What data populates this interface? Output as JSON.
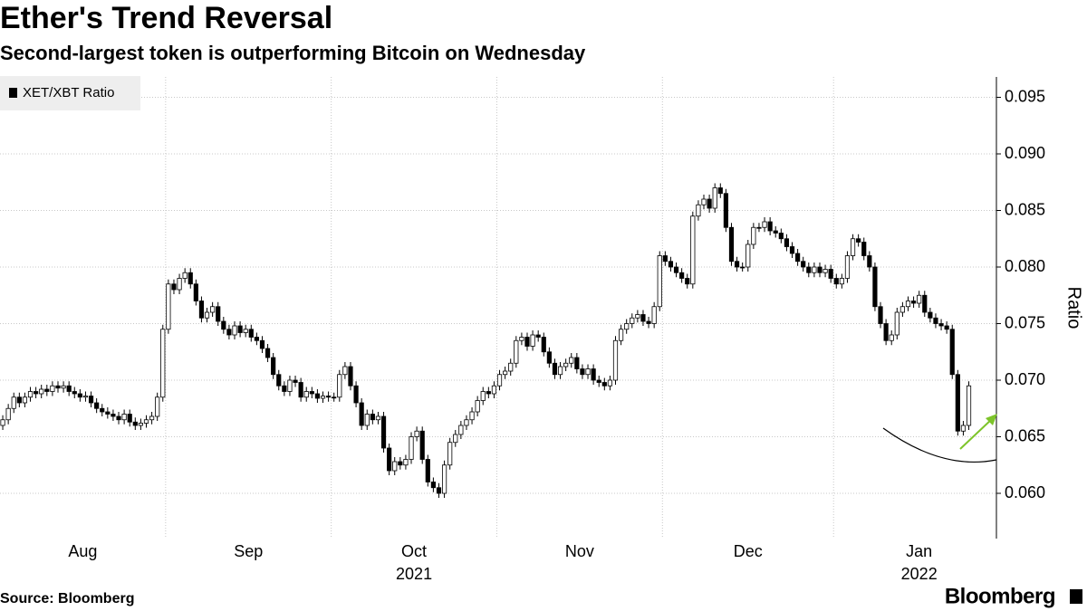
{
  "chart_data": {
    "type": "candlestick",
    "title": "Ether's Trend Reversal",
    "subtitle": "Second-largest token is outperforming Bitcoin on Wednesday",
    "y_label": "Ratio",
    "source": "Source: Bloomberg",
    "brand": "Bloomberg",
    "ylim": [
      0.056,
      0.0968
    ],
    "yticks": [
      {
        "value": 0.06,
        "label": "0.060"
      },
      0.065,
      {
        "value": 0.07,
        "label": "0.070"
      },
      0.075,
      {
        "value": 0.08,
        "label": "0.080"
      },
      0.085,
      {
        "value": 0.09,
        "label": "0.090"
      },
      0.095
    ],
    "xlim": [
      -0.5,
      180
    ],
    "xgrid": [
      29.5,
      59.5,
      89.5,
      119.5,
      150.5
    ],
    "month_labels": [
      {
        "value": 14.5,
        "label": "Aug"
      },
      {
        "value": 44.5,
        "label": "Sep"
      },
      {
        "value": 74.5,
        "label": "Oct",
        "year": "2021"
      },
      {
        "value": 104.5,
        "label": "Nov"
      },
      {
        "value": 135,
        "label": "Dec"
      },
      {
        "value": 166,
        "label": "Jan",
        "year": "2022"
      }
    ],
    "grid": true,
    "legend": "top-left",
    "up_color": "#ffffff",
    "series": [
      {
        "name": "XET/XBT Ratio",
        "color": "#000000",
        "ohlc": [
          [
            0.066,
            0.0669,
            0.0656,
            0.0665
          ],
          [
            0.0665,
            0.0679,
            0.0661,
            0.0675
          ],
          [
            0.0675,
            0.0689,
            0.0671,
            0.0685
          ],
          [
            0.0685,
            0.0689,
            0.0676,
            0.068
          ],
          [
            0.068,
            0.0689,
            0.0676,
            0.0685
          ],
          [
            0.0685,
            0.0694,
            0.0681,
            0.069
          ],
          [
            0.069,
            0.0694,
            0.0684,
            0.0688
          ],
          [
            0.0688,
            0.0696,
            0.0684,
            0.0692
          ],
          [
            0.0692,
            0.0696,
            0.0686,
            0.069
          ],
          [
            0.069,
            0.0699,
            0.0686,
            0.0695
          ],
          [
            0.0695,
            0.0699,
            0.0689,
            0.0693
          ],
          [
            0.0693,
            0.0699,
            0.0689,
            0.0695
          ],
          [
            0.0695,
            0.0699,
            0.0686,
            0.069
          ],
          [
            0.069,
            0.0694,
            0.0684,
            0.0688
          ],
          [
            0.0688,
            0.0692,
            0.0681,
            0.0685
          ],
          [
            0.0685,
            0.069,
            0.0681,
            0.0686
          ],
          [
            0.0686,
            0.069,
            0.0676,
            0.068
          ],
          [
            0.068,
            0.0684,
            0.0671,
            0.0675
          ],
          [
            0.0675,
            0.0679,
            0.0668,
            0.0672
          ],
          [
            0.0672,
            0.0676,
            0.0666,
            0.067
          ],
          [
            0.067,
            0.0674,
            0.0664,
            0.0668
          ],
          [
            0.0668,
            0.0672,
            0.0661,
            0.0665
          ],
          [
            0.0665,
            0.0674,
            0.0661,
            0.067
          ],
          [
            0.067,
            0.0674,
            0.0659,
            0.0663
          ],
          [
            0.0663,
            0.0667,
            0.0656,
            0.066
          ],
          [
            0.066,
            0.0666,
            0.0656,
            0.0662
          ],
          [
            0.0662,
            0.0669,
            0.0658,
            0.0665
          ],
          [
            0.0665,
            0.0672,
            0.0661,
            0.0668
          ],
          [
            0.0668,
            0.0689,
            0.0664,
            0.0685
          ],
          [
            0.0685,
            0.0749,
            0.0681,
            0.0745
          ],
          [
            0.0745,
            0.0789,
            0.0741,
            0.0785
          ],
          [
            0.0785,
            0.0789,
            0.0776,
            0.078
          ],
          [
            0.078,
            0.0794,
            0.0776,
            0.079
          ],
          [
            0.079,
            0.0799,
            0.0786,
            0.0795
          ],
          [
            0.0795,
            0.0799,
            0.0781,
            0.0785
          ],
          [
            0.0785,
            0.0789,
            0.0766,
            0.077
          ],
          [
            0.077,
            0.0774,
            0.0751,
            0.0755
          ],
          [
            0.0755,
            0.0764,
            0.0751,
            0.076
          ],
          [
            0.076,
            0.0769,
            0.0756,
            0.0765
          ],
          [
            0.0765,
            0.0769,
            0.0748,
            0.0752
          ],
          [
            0.0752,
            0.0756,
            0.0741,
            0.0745
          ],
          [
            0.0745,
            0.0749,
            0.0736,
            0.074
          ],
          [
            0.074,
            0.0752,
            0.0736,
            0.0748
          ],
          [
            0.0748,
            0.0752,
            0.0738,
            0.0742
          ],
          [
            0.0742,
            0.0749,
            0.0738,
            0.0745
          ],
          [
            0.0745,
            0.0749,
            0.0734,
            0.0738
          ],
          [
            0.0738,
            0.0742,
            0.0731,
            0.0735
          ],
          [
            0.0735,
            0.0739,
            0.0724,
            0.0728
          ],
          [
            0.0728,
            0.0732,
            0.0716,
            0.072
          ],
          [
            0.072,
            0.0724,
            0.0701,
            0.0705
          ],
          [
            0.0705,
            0.0709,
            0.0691,
            0.0695
          ],
          [
            0.0695,
            0.0699,
            0.0686,
            0.069
          ],
          [
            0.069,
            0.0704,
            0.0686,
            0.07
          ],
          [
            0.07,
            0.0704,
            0.0694,
            0.0698
          ],
          [
            0.0698,
            0.0702,
            0.0681,
            0.0685
          ],
          [
            0.0685,
            0.0694,
            0.0681,
            0.069
          ],
          [
            0.069,
            0.0694,
            0.0684,
            0.0688
          ],
          [
            0.0688,
            0.0692,
            0.068,
            0.0684
          ],
          [
            0.0684,
            0.069,
            0.068,
            0.0686
          ],
          [
            0.0686,
            0.069,
            0.0681,
            0.0685
          ],
          [
            0.0685,
            0.0689,
            0.0681,
            0.0685
          ],
          [
            0.0685,
            0.0709,
            0.0681,
            0.0705
          ],
          [
            0.0705,
            0.0716,
            0.0701,
            0.0712
          ],
          [
            0.0712,
            0.0716,
            0.0691,
            0.0695
          ],
          [
            0.0695,
            0.0699,
            0.0676,
            0.068
          ],
          [
            0.068,
            0.0684,
            0.0656,
            0.066
          ],
          [
            0.066,
            0.0674,
            0.0656,
            0.067
          ],
          [
            0.067,
            0.0674,
            0.0661,
            0.0665
          ],
          [
            0.0665,
            0.0672,
            0.0661,
            0.0668
          ],
          [
            0.0668,
            0.0672,
            0.0636,
            0.064
          ],
          [
            0.064,
            0.0644,
            0.0616,
            0.062
          ],
          [
            0.062,
            0.0632,
            0.0616,
            0.0628
          ],
          [
            0.0628,
            0.0632,
            0.0621,
            0.0625
          ],
          [
            0.0625,
            0.0634,
            0.0621,
            0.063
          ],
          [
            0.063,
            0.0654,
            0.0626,
            0.065
          ],
          [
            0.065,
            0.0659,
            0.0646,
            0.0655
          ],
          [
            0.0655,
            0.0659,
            0.0626,
            0.063
          ],
          [
            0.063,
            0.0634,
            0.0606,
            0.061
          ],
          [
            0.061,
            0.0614,
            0.0601,
            0.0605
          ],
          [
            0.0605,
            0.0609,
            0.0596,
            0.06
          ],
          [
            0.06,
            0.0629,
            0.0596,
            0.0625
          ],
          [
            0.0625,
            0.0649,
            0.0621,
            0.0645
          ],
          [
            0.0645,
            0.0656,
            0.0641,
            0.0652
          ],
          [
            0.0652,
            0.0664,
            0.0648,
            0.066
          ],
          [
            0.066,
            0.0669,
            0.0656,
            0.0665
          ],
          [
            0.0665,
            0.0676,
            0.0661,
            0.0672
          ],
          [
            0.0672,
            0.0686,
            0.0668,
            0.0682
          ],
          [
            0.0682,
            0.0694,
            0.0678,
            0.069
          ],
          [
            0.069,
            0.0694,
            0.0684,
            0.0688
          ],
          [
            0.0688,
            0.0699,
            0.0684,
            0.0695
          ],
          [
            0.0695,
            0.0709,
            0.0691,
            0.0705
          ],
          [
            0.0705,
            0.0712,
            0.0701,
            0.0708
          ],
          [
            0.0708,
            0.0719,
            0.0704,
            0.0715
          ],
          [
            0.0715,
            0.0739,
            0.0711,
            0.0735
          ],
          [
            0.0735,
            0.0742,
            0.0731,
            0.0738
          ],
          [
            0.0738,
            0.0742,
            0.0726,
            0.073
          ],
          [
            0.073,
            0.0744,
            0.0726,
            0.074
          ],
          [
            0.074,
            0.0744,
            0.0734,
            0.0738
          ],
          [
            0.0738,
            0.0742,
            0.0721,
            0.0725
          ],
          [
            0.0725,
            0.0729,
            0.0711,
            0.0715
          ],
          [
            0.0715,
            0.0719,
            0.0701,
            0.0705
          ],
          [
            0.0705,
            0.0716,
            0.0701,
            0.0712
          ],
          [
            0.0712,
            0.0719,
            0.0708,
            0.0715
          ],
          [
            0.0715,
            0.0724,
            0.0711,
            0.072
          ],
          [
            0.072,
            0.0724,
            0.0706,
            0.071
          ],
          [
            0.071,
            0.0714,
            0.0701,
            0.0705
          ],
          [
            0.0705,
            0.0714,
            0.0701,
            0.071
          ],
          [
            0.071,
            0.0714,
            0.0696,
            0.07
          ],
          [
            0.07,
            0.0704,
            0.0694,
            0.0698
          ],
          [
            0.0698,
            0.0702,
            0.0691,
            0.0695
          ],
          [
            0.0695,
            0.0704,
            0.0691,
            0.07
          ],
          [
            0.07,
            0.0739,
            0.0696,
            0.0735
          ],
          [
            0.0735,
            0.0749,
            0.0731,
            0.0745
          ],
          [
            0.0745,
            0.0754,
            0.0741,
            0.075
          ],
          [
            0.075,
            0.0759,
            0.0746,
            0.0755
          ],
          [
            0.0755,
            0.0762,
            0.0751,
            0.0758
          ],
          [
            0.0758,
            0.0762,
            0.0748,
            0.0752
          ],
          [
            0.0752,
            0.0756,
            0.0746,
            0.075
          ],
          [
            0.075,
            0.0769,
            0.0746,
            0.0765
          ],
          [
            0.0765,
            0.0814,
            0.0761,
            0.081
          ],
          [
            0.081,
            0.0814,
            0.0801,
            0.0805
          ],
          [
            0.0805,
            0.0809,
            0.0796,
            0.08
          ],
          [
            0.08,
            0.0804,
            0.0791,
            0.0795
          ],
          [
            0.0795,
            0.0799,
            0.0786,
            0.079
          ],
          [
            0.079,
            0.0794,
            0.0781,
            0.0785
          ],
          [
            0.0785,
            0.0849,
            0.0781,
            0.0845
          ],
          [
            0.0845,
            0.0859,
            0.0841,
            0.0855
          ],
          [
            0.0855,
            0.0864,
            0.0851,
            0.086
          ],
          [
            0.086,
            0.0864,
            0.0848,
            0.0852
          ],
          [
            0.0852,
            0.0874,
            0.0848,
            0.087
          ],
          [
            0.087,
            0.0874,
            0.0861,
            0.0865
          ],
          [
            0.0865,
            0.0869,
            0.0831,
            0.0835
          ],
          [
            0.0835,
            0.0839,
            0.0801,
            0.0805
          ],
          [
            0.0805,
            0.0809,
            0.0796,
            0.08
          ],
          [
            0.08,
            0.0804,
            0.0796,
            0.08
          ],
          [
            0.08,
            0.0824,
            0.0796,
            0.082
          ],
          [
            0.082,
            0.0839,
            0.0816,
            0.0835
          ],
          [
            0.0835,
            0.0839,
            0.0831,
            0.0835
          ],
          [
            0.0835,
            0.0844,
            0.0831,
            0.084
          ],
          [
            0.084,
            0.0844,
            0.0828,
            0.0832
          ],
          [
            0.0832,
            0.0836,
            0.0826,
            0.083
          ],
          [
            0.083,
            0.0834,
            0.0821,
            0.0825
          ],
          [
            0.0825,
            0.0829,
            0.0814,
            0.0818
          ],
          [
            0.0818,
            0.0822,
            0.0808,
            0.0812
          ],
          [
            0.0812,
            0.0816,
            0.0801,
            0.0805
          ],
          [
            0.0805,
            0.0809,
            0.0796,
            0.08
          ],
          [
            0.08,
            0.0804,
            0.0791,
            0.0795
          ],
          [
            0.0795,
            0.0804,
            0.0791,
            0.08
          ],
          [
            0.08,
            0.0804,
            0.0791,
            0.0795
          ],
          [
            0.0795,
            0.0802,
            0.0791,
            0.0798
          ],
          [
            0.0798,
            0.0802,
            0.0786,
            0.079
          ],
          [
            0.079,
            0.0794,
            0.0781,
            0.0785
          ],
          [
            0.0785,
            0.0794,
            0.0781,
            0.079
          ],
          [
            0.079,
            0.0814,
            0.0786,
            0.081
          ],
          [
            0.081,
            0.0829,
            0.0806,
            0.0825
          ],
          [
            0.0825,
            0.0829,
            0.0818,
            0.0822
          ],
          [
            0.0822,
            0.0826,
            0.0806,
            0.081
          ],
          [
            0.081,
            0.0814,
            0.0796,
            0.08
          ],
          [
            0.08,
            0.0804,
            0.0761,
            0.0765
          ],
          [
            0.0765,
            0.0769,
            0.0746,
            0.075
          ],
          [
            0.075,
            0.0754,
            0.0731,
            0.0735
          ],
          [
            0.0735,
            0.0744,
            0.0731,
            0.074
          ],
          [
            0.074,
            0.0764,
            0.0736,
            0.076
          ],
          [
            0.076,
            0.0769,
            0.0756,
            0.0765
          ],
          [
            0.0765,
            0.0774,
            0.0761,
            0.077
          ],
          [
            0.077,
            0.0774,
            0.0764,
            0.0768
          ],
          [
            0.0768,
            0.0779,
            0.0764,
            0.0775
          ],
          [
            0.0775,
            0.0779,
            0.0756,
            0.076
          ],
          [
            0.076,
            0.0764,
            0.0751,
            0.0755
          ],
          [
            0.0755,
            0.0759,
            0.0746,
            0.075
          ],
          [
            0.075,
            0.0754,
            0.0744,
            0.0748
          ],
          [
            0.0748,
            0.0752,
            0.0741,
            0.0745
          ],
          [
            0.0745,
            0.0749,
            0.0701,
            0.0705
          ],
          [
            0.0705,
            0.0709,
            0.0651,
            0.0655
          ],
          [
            0.0655,
            0.0664,
            0.0651,
            0.066
          ],
          [
            0.066,
            0.0699,
            0.0656,
            0.0695
          ]
        ]
      }
    ]
  }
}
